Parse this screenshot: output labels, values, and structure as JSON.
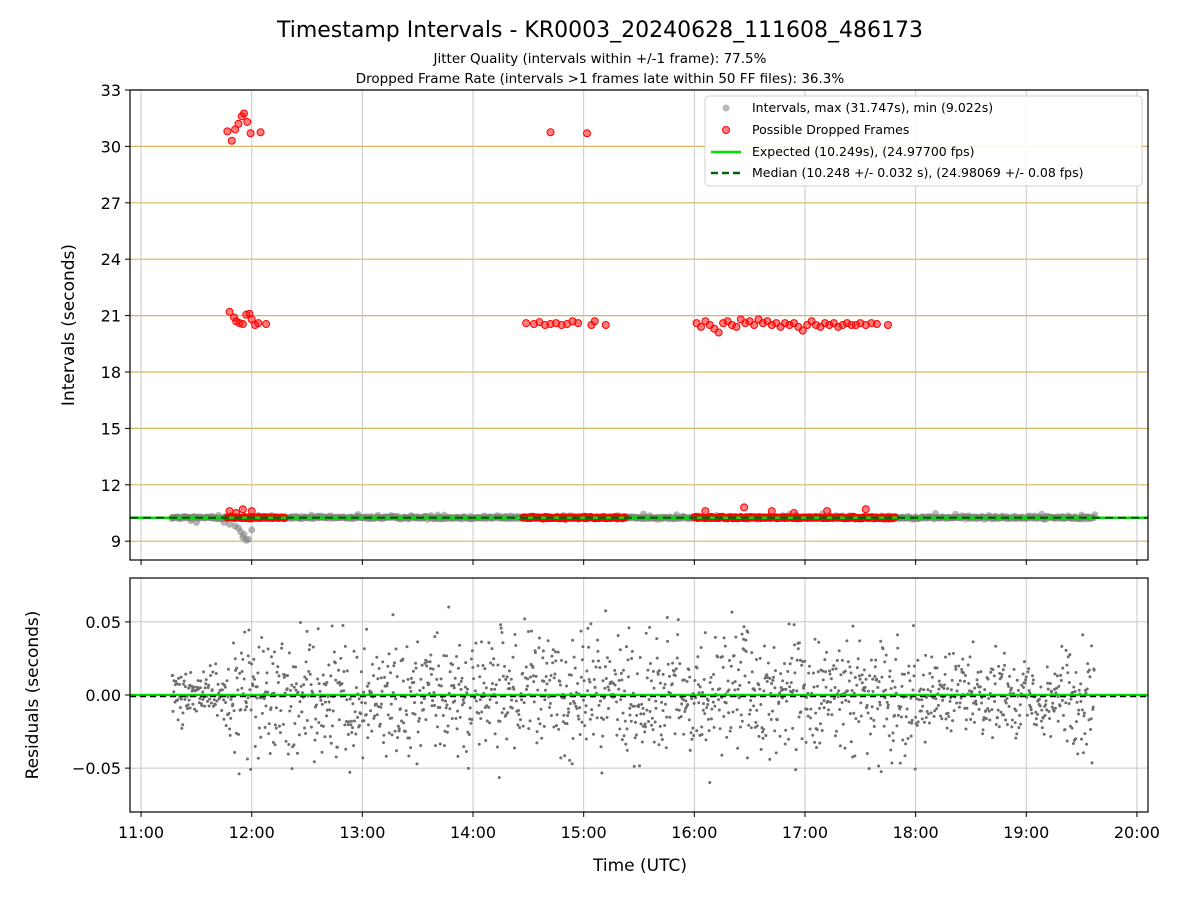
{
  "chart_data": {
    "title": "Timestamp Intervals - KR0003_20240628_111608_486173",
    "subtitle_lines": [
      "Jitter Quality (intervals within +/-1 frame): 77.5%",
      "Dropped Frame Rate (intervals >1 frames late within 50 FF files): 36.3%"
    ],
    "xlabel": "Time (UTC)",
    "x_tick_labels": [
      "11:00",
      "12:00",
      "13:00",
      "14:00",
      "15:00",
      "16:00",
      "17:00",
      "18:00",
      "19:00",
      "20:00"
    ],
    "xlim_hours": [
      10.9,
      20.1
    ],
    "colors": {
      "intervals": "#808080",
      "dropped": "#ff0000",
      "expected": "#00e000",
      "median": "#006400",
      "hgrid_top": "#d4b65c",
      "grid": "#c8c8c8",
      "residuals": "#6e6e6e"
    },
    "top": {
      "type": "scatter",
      "ylabel": "Intervals (seconds)",
      "ylim": [
        8,
        33
      ],
      "y_ticks": [
        9,
        12,
        15,
        18,
        21,
        24,
        27,
        30,
        33
      ],
      "y_tick_labels": [
        "9",
        "12",
        "15",
        "18",
        "21",
        "24",
        "27",
        "30",
        "33"
      ],
      "expected_value": 10.249,
      "median_value": 10.248,
      "legend": {
        "placement": "top-right",
        "entries": [
          "Intervals, max (31.747s), min (9.022s)",
          "Possible Dropped Frames",
          "Expected (10.249s), (24.97700 fps)",
          "Median (10.248 +/- 0.032 s), (24.98069 +/- 0.08 fps)"
        ]
      },
      "series": [
        {
          "name": "Intervals, max (31.747s), min (9.022s)",
          "baseline_band": {
            "start_hour": 11.28,
            "end_hour": 19.62,
            "y": 10.25
          },
          "dip_points": [
            [
              11.92,
              9.2
            ],
            [
              11.95,
              9.05
            ],
            [
              11.97,
              9.1
            ],
            [
              11.9,
              9.5
            ],
            [
              11.85,
              9.8
            ],
            [
              11.8,
              9.9
            ],
            [
              11.88,
              9.7
            ],
            [
              11.93,
              9.35
            ],
            [
              12.0,
              9.6
            ],
            [
              11.75,
              10.0
            ],
            [
              11.5,
              10.0
            ],
            [
              11.45,
              10.1
            ]
          ]
        },
        {
          "name": "Possible Dropped Frames",
          "clusters": [
            {
              "start_hour": 11.78,
              "end_hour": 12.3,
              "y": 10.25
            },
            {
              "start_hour": 14.45,
              "end_hour": 15.38,
              "y": 10.25
            },
            {
              "start_hour": 16.0,
              "end_hour": 17.82,
              "y": 10.25
            }
          ],
          "points": [
            [
              11.78,
              30.8
            ],
            [
              11.82,
              30.3
            ],
            [
              11.85,
              30.9
            ],
            [
              11.88,
              31.2
            ],
            [
              11.91,
              31.6
            ],
            [
              11.93,
              31.75
            ],
            [
              11.96,
              31.3
            ],
            [
              11.99,
              30.7
            ],
            [
              12.08,
              30.75
            ],
            [
              11.8,
              21.2
            ],
            [
              11.84,
              20.9
            ],
            [
              11.86,
              20.7
            ],
            [
              11.89,
              20.6
            ],
            [
              11.92,
              20.55
            ],
            [
              11.95,
              21.05
            ],
            [
              11.98,
              21.1
            ],
            [
              12.0,
              20.8
            ],
            [
              12.03,
              20.5
            ],
            [
              12.06,
              20.6
            ],
            [
              12.13,
              20.55
            ],
            [
              14.7,
              30.75
            ],
            [
              15.03,
              30.7
            ],
            [
              14.48,
              20.6
            ],
            [
              14.55,
              20.55
            ],
            [
              14.6,
              20.65
            ],
            [
              14.65,
              20.5
            ],
            [
              14.7,
              20.55
            ],
            [
              14.75,
              20.6
            ],
            [
              14.8,
              20.5
            ],
            [
              14.85,
              20.55
            ],
            [
              14.9,
              20.7
            ],
            [
              14.95,
              20.6
            ],
            [
              15.07,
              20.5
            ],
            [
              15.1,
              20.7
            ],
            [
              15.2,
              20.5
            ],
            [
              16.02,
              20.6
            ],
            [
              16.06,
              20.4
            ],
            [
              16.1,
              20.7
            ],
            [
              16.14,
              20.5
            ],
            [
              16.18,
              20.3
            ],
            [
              16.22,
              20.1
            ],
            [
              16.26,
              20.6
            ],
            [
              16.3,
              20.7
            ],
            [
              16.34,
              20.5
            ],
            [
              16.38,
              20.4
            ],
            [
              16.42,
              20.8
            ],
            [
              16.46,
              20.6
            ],
            [
              16.5,
              20.7
            ],
            [
              16.54,
              20.5
            ],
            [
              16.58,
              20.8
            ],
            [
              16.62,
              20.6
            ],
            [
              16.66,
              20.7
            ],
            [
              16.7,
              20.5
            ],
            [
              16.74,
              20.6
            ],
            [
              16.78,
              20.4
            ],
            [
              16.82,
              20.6
            ],
            [
              16.86,
              20.5
            ],
            [
              16.9,
              20.6
            ],
            [
              16.94,
              20.4
            ],
            [
              16.98,
              20.2
            ],
            [
              17.02,
              20.5
            ],
            [
              17.06,
              20.7
            ],
            [
              17.1,
              20.5
            ],
            [
              17.14,
              20.4
            ],
            [
              17.18,
              20.6
            ],
            [
              17.22,
              20.5
            ],
            [
              17.26,
              20.6
            ],
            [
              17.3,
              20.4
            ],
            [
              17.34,
              20.5
            ],
            [
              17.38,
              20.6
            ],
            [
              17.42,
              20.5
            ],
            [
              17.46,
              20.5
            ],
            [
              17.5,
              20.6
            ],
            [
              17.55,
              20.5
            ],
            [
              17.6,
              20.6
            ],
            [
              17.65,
              20.55
            ],
            [
              17.75,
              20.5
            ],
            [
              11.8,
              10.6
            ],
            [
              11.86,
              10.5
            ],
            [
              11.92,
              10.7
            ],
            [
              12.0,
              10.6
            ],
            [
              16.1,
              10.6
            ],
            [
              16.45,
              10.8
            ],
            [
              16.7,
              10.6
            ],
            [
              16.9,
              10.5
            ],
            [
              17.2,
              10.6
            ],
            [
              17.55,
              10.7
            ]
          ]
        }
      ]
    },
    "bottom": {
      "type": "scatter",
      "ylabel": "Residuals (seconds)",
      "ylim": [
        -0.08,
        0.08
      ],
      "y_ticks": [
        -0.05,
        0,
        0.05
      ],
      "y_tick_labels": [
        "−0.05",
        "0.00",
        "0.05"
      ],
      "expected_residual": 0.0,
      "median_residual": -0.001,
      "series": [
        {
          "span_hours": [
            11.28,
            19.62
          ],
          "approx_spread": 0.03
        }
      ]
    }
  }
}
